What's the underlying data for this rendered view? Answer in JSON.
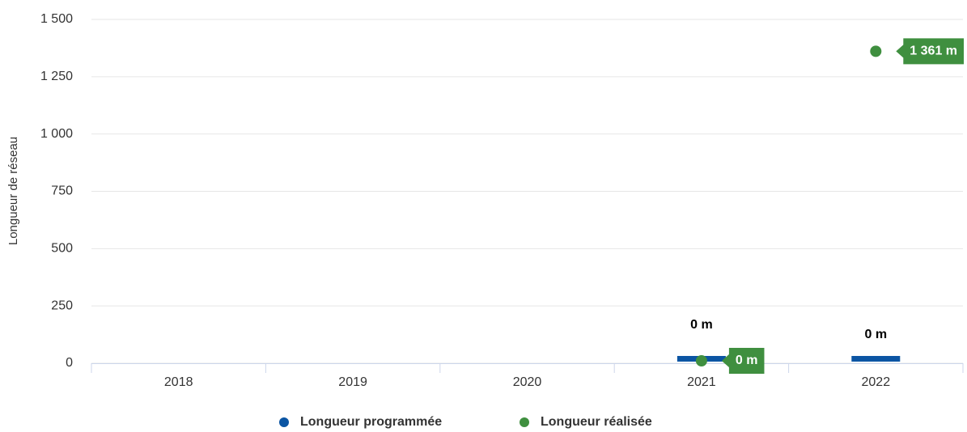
{
  "chart_data": {
    "type": "bar_scatter",
    "y_label": "Longueur de réseau",
    "categories": [
      "2018",
      "2019",
      "2020",
      "2021",
      "2022"
    ],
    "series": [
      {
        "name": "Longueur programmée",
        "color": "#0b55a3",
        "kind": "bar",
        "values": [
          null,
          null,
          null,
          0,
          0
        ],
        "value_labels": [
          null,
          null,
          null,
          "0 m",
          "0 m"
        ]
      },
      {
        "name": "Longueur réalisée",
        "color": "#3f8f3f",
        "kind": "point",
        "values": [
          null,
          null,
          null,
          0,
          1361
        ],
        "value_labels": [
          null,
          null,
          null,
          "0 m",
          "1 361 m"
        ]
      }
    ],
    "ylim": [
      0,
      1500
    ],
    "yticks": [
      0,
      250,
      500,
      750,
      {
        "value": 1000,
        "label": "1 000"
      },
      {
        "value": 1250,
        "label": "1 250"
      },
      {
        "value": 1500,
        "label": "1 500"
      }
    ],
    "grid": true
  }
}
